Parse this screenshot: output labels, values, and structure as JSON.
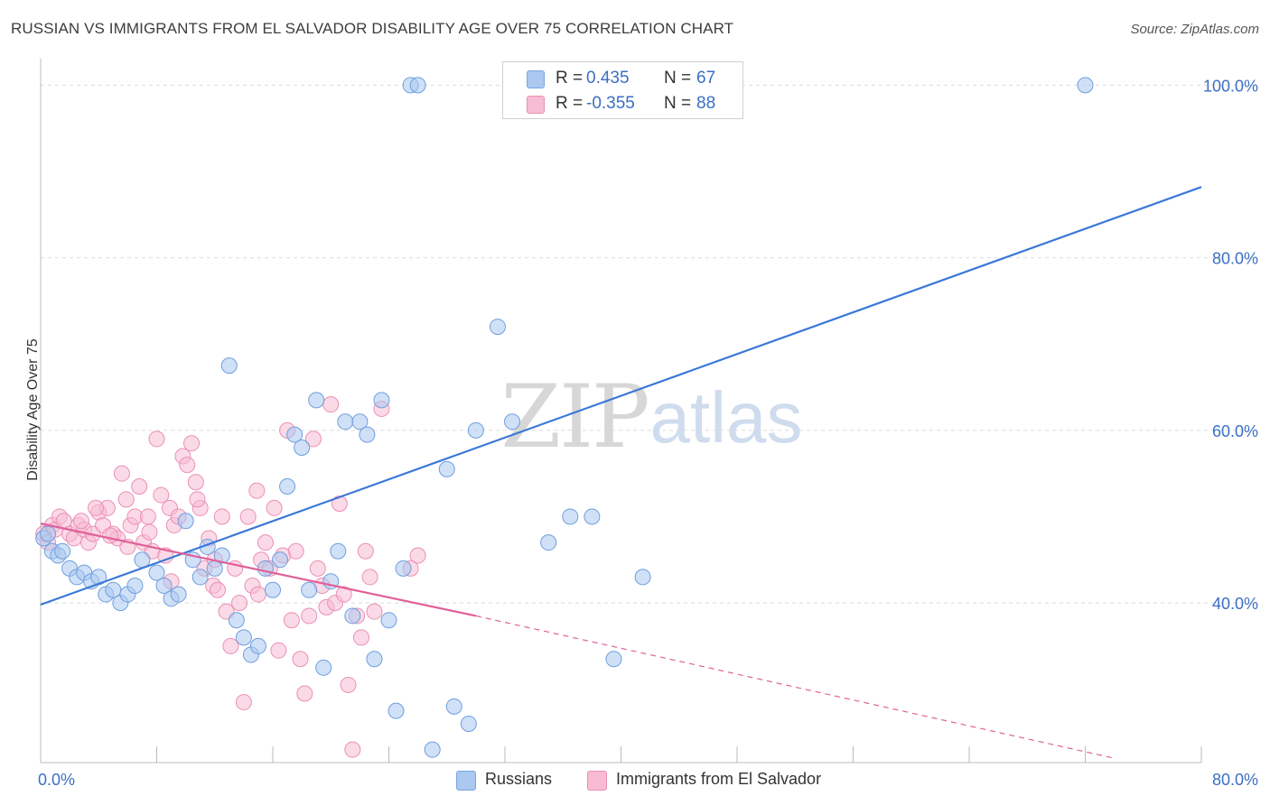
{
  "header": {
    "title": "RUSSIAN VS IMMIGRANTS FROM EL SALVADOR DISABILITY AGE OVER 75 CORRELATION CHART",
    "source": "Source: ZipAtlas.com"
  },
  "watermark": {
    "zip": "ZIP",
    "atlas": "atlas"
  },
  "legend": {
    "r_label": "R =",
    "n_label": "N =",
    "russians": {
      "r": "0.435",
      "n": "67"
    },
    "immigrants": {
      "r": "-0.355",
      "n": "88"
    }
  },
  "bottom_legend": {
    "russians": "Russians",
    "immigrants": "Immigrants from El Salvador"
  },
  "chart_data": {
    "type": "scatter",
    "title": "RUSSIAN VS IMMIGRANTS FROM EL SALVADOR DISABILITY AGE OVER 75 CORRELATION CHART",
    "ylabel": "Disability Age Over 75",
    "xlabel": "",
    "xlim": [
      0,
      80
    ],
    "ylim": [
      21.5,
      101.5
    ],
    "x_tick_labels": [
      {
        "value": 0,
        "label": "0.0%"
      },
      {
        "value": 80,
        "label": "80.0%"
      }
    ],
    "y_tick_labels": [
      {
        "value": 40,
        "label": "40.0%"
      },
      {
        "value": 60,
        "label": "60.0%"
      },
      {
        "value": 80,
        "label": "80.0%"
      },
      {
        "value": 100,
        "label": "100.0%"
      }
    ],
    "grid": "horizontal dashed",
    "colors": {
      "russians": "#3b78d8",
      "russians_fill": "#aac8f0",
      "immigrants": "#e0609a",
      "immigrants_fill": "#f7bcd3"
    },
    "series": [
      {
        "name": "Russians",
        "points": [
          [
            0.2,
            47.5
          ],
          [
            0.5,
            48
          ],
          [
            0.8,
            46
          ],
          [
            1.2,
            45.5
          ],
          [
            1.5,
            46
          ],
          [
            2.0,
            44
          ],
          [
            2.5,
            43
          ],
          [
            3.0,
            43.5
          ],
          [
            3.5,
            42.5
          ],
          [
            4.0,
            43
          ],
          [
            4.5,
            41
          ],
          [
            5.0,
            41.5
          ],
          [
            5.5,
            40
          ],
          [
            6.0,
            41
          ],
          [
            6.5,
            42
          ],
          [
            7.0,
            45
          ],
          [
            8.0,
            43.5
          ],
          [
            8.5,
            42
          ],
          [
            9.0,
            40.5
          ],
          [
            9.5,
            41
          ],
          [
            10.0,
            49.5
          ],
          [
            10.5,
            45
          ],
          [
            11.0,
            43
          ],
          [
            11.5,
            46.5
          ],
          [
            12.0,
            44
          ],
          [
            12.5,
            45.5
          ],
          [
            13.0,
            67.5
          ],
          [
            13.5,
            38
          ],
          [
            14.0,
            36
          ],
          [
            14.5,
            34
          ],
          [
            15.0,
            35
          ],
          [
            15.5,
            44
          ],
          [
            16.0,
            41.5
          ],
          [
            16.5,
            45
          ],
          [
            17.0,
            53.5
          ],
          [
            17.5,
            59.5
          ],
          [
            18.0,
            58
          ],
          [
            18.5,
            41.5
          ],
          [
            19.0,
            63.5
          ],
          [
            19.5,
            32.5
          ],
          [
            20.0,
            42.5
          ],
          [
            20.5,
            46
          ],
          [
            21.0,
            61
          ],
          [
            21.5,
            38.5
          ],
          [
            22.0,
            61
          ],
          [
            22.5,
            59.5
          ],
          [
            23.0,
            33.5
          ],
          [
            23.5,
            63.5
          ],
          [
            24.0,
            38
          ],
          [
            24.5,
            27.5
          ],
          [
            25.0,
            44
          ],
          [
            25.5,
            100
          ],
          [
            26.0,
            100
          ],
          [
            27.0,
            23
          ],
          [
            28.0,
            55.5
          ],
          [
            28.5,
            28
          ],
          [
            29.5,
            26
          ],
          [
            30.0,
            60
          ],
          [
            31.5,
            72
          ],
          [
            32.5,
            61
          ],
          [
            34.5,
            100
          ],
          [
            35.0,
            47
          ],
          [
            36.5,
            50
          ],
          [
            38.0,
            50
          ],
          [
            39.5,
            33.5
          ],
          [
            41.5,
            43
          ],
          [
            72.0,
            100
          ]
        ],
        "trend": {
          "x0": 0,
          "y0": 39.8,
          "x1": 80,
          "y1": 88.2
        }
      },
      {
        "name": "Immigrants from El Salvador",
        "points": [
          [
            0.2,
            48
          ],
          [
            0.5,
            47
          ],
          [
            0.8,
            49
          ],
          [
            1.0,
            48.5
          ],
          [
            1.3,
            50
          ],
          [
            1.6,
            49.5
          ],
          [
            2.0,
            48
          ],
          [
            2.3,
            47.5
          ],
          [
            2.6,
            49
          ],
          [
            3.0,
            48.5
          ],
          [
            3.3,
            47
          ],
          [
            3.6,
            48
          ],
          [
            4.0,
            50.5
          ],
          [
            4.3,
            49
          ],
          [
            4.6,
            51
          ],
          [
            5.0,
            48
          ],
          [
            5.3,
            47.5
          ],
          [
            5.6,
            55
          ],
          [
            5.9,
            52
          ],
          [
            6.2,
            49
          ],
          [
            6.5,
            50
          ],
          [
            6.8,
            53.5
          ],
          [
            7.1,
            47
          ],
          [
            7.4,
            50
          ],
          [
            7.7,
            46
          ],
          [
            8.0,
            59
          ],
          [
            8.3,
            52.5
          ],
          [
            8.6,
            45.5
          ],
          [
            8.9,
            51
          ],
          [
            9.2,
            49
          ],
          [
            9.5,
            50
          ],
          [
            9.8,
            57
          ],
          [
            10.1,
            56
          ],
          [
            10.4,
            58.5
          ],
          [
            10.7,
            54
          ],
          [
            11.0,
            51
          ],
          [
            11.3,
            44
          ],
          [
            11.6,
            47.5
          ],
          [
            11.9,
            42
          ],
          [
            12.2,
            41.5
          ],
          [
            12.5,
            50
          ],
          [
            12.8,
            39
          ],
          [
            13.1,
            35
          ],
          [
            13.4,
            44
          ],
          [
            13.7,
            40
          ],
          [
            14.0,
            28.5
          ],
          [
            14.3,
            50
          ],
          [
            14.6,
            42
          ],
          [
            14.9,
            53
          ],
          [
            15.2,
            45
          ],
          [
            15.5,
            47
          ],
          [
            15.8,
            44
          ],
          [
            16.1,
            51
          ],
          [
            16.4,
            34.5
          ],
          [
            16.7,
            45.5
          ],
          [
            17.0,
            60
          ],
          [
            17.3,
            38
          ],
          [
            17.6,
            46
          ],
          [
            17.9,
            33.5
          ],
          [
            18.2,
            29.5
          ],
          [
            18.5,
            38.5
          ],
          [
            18.8,
            59
          ],
          [
            19.1,
            44
          ],
          [
            19.4,
            42
          ],
          [
            19.7,
            39.5
          ],
          [
            20.0,
            63
          ],
          [
            20.3,
            40
          ],
          [
            20.6,
            51.5
          ],
          [
            20.9,
            41
          ],
          [
            21.2,
            30.5
          ],
          [
            21.5,
            23
          ],
          [
            21.8,
            38.5
          ],
          [
            22.1,
            36
          ],
          [
            22.4,
            46
          ],
          [
            22.7,
            43
          ],
          [
            23.0,
            39
          ],
          [
            23.5,
            62.5
          ],
          [
            25.5,
            44
          ],
          [
            26.0,
            45.5
          ],
          [
            4.8,
            47.8
          ],
          [
            7.5,
            48.2
          ],
          [
            9.0,
            42.5
          ],
          [
            12.0,
            45
          ],
          [
            15.0,
            41
          ],
          [
            10.8,
            52
          ],
          [
            3.8,
            51
          ],
          [
            6.0,
            46.5
          ],
          [
            2.8,
            49.5
          ]
        ],
        "trend": {
          "x0": 0,
          "y0": 49.2,
          "x1": 30,
          "y1": 38.5
        },
        "trend_dashed": {
          "x0": 30,
          "y0": 38.5,
          "x1": 74,
          "y1": 22
        }
      }
    ]
  }
}
